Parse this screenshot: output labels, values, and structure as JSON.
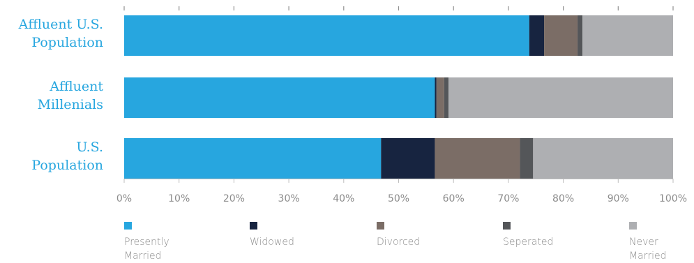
{
  "chart_data": {
    "type": "bar",
    "orientation": "horizontal",
    "stacked": true,
    "title": "",
    "xlabel": "",
    "ylabel": "",
    "xlim": [
      0,
      100
    ],
    "x_ticks": [
      "0%",
      "10%",
      "20%",
      "30%",
      "40%",
      "50%",
      "60%",
      "70%",
      "80%",
      "90%",
      "100%"
    ],
    "categories": [
      [
        "Affluent U.S.",
        "Population"
      ],
      [
        "Affluent",
        "Millenials"
      ],
      [
        "U.S.",
        "Population"
      ]
    ],
    "series": [
      {
        "name": [
          "Presently",
          "Married"
        ],
        "color": "#27a6df",
        "values": [
          73.8,
          56.6,
          46.8
        ]
      },
      {
        "name": [
          "Widowed"
        ],
        "color": "#172440",
        "values": [
          2.7,
          0.3,
          9.8
        ]
      },
      {
        "name": [
          "Divorced"
        ],
        "color": "#7b6d66",
        "values": [
          6.1,
          1.4,
          15.5
        ]
      },
      {
        "name": [
          "Seperated"
        ],
        "color": "#545659",
        "values": [
          0.9,
          0.8,
          2.4
        ]
      },
      {
        "name": [
          "Never",
          "Married"
        ],
        "color": "#aeafb2",
        "values": [
          16.5,
          40.9,
          25.5
        ]
      }
    ],
    "grid": false,
    "legend_position": "bottom"
  }
}
